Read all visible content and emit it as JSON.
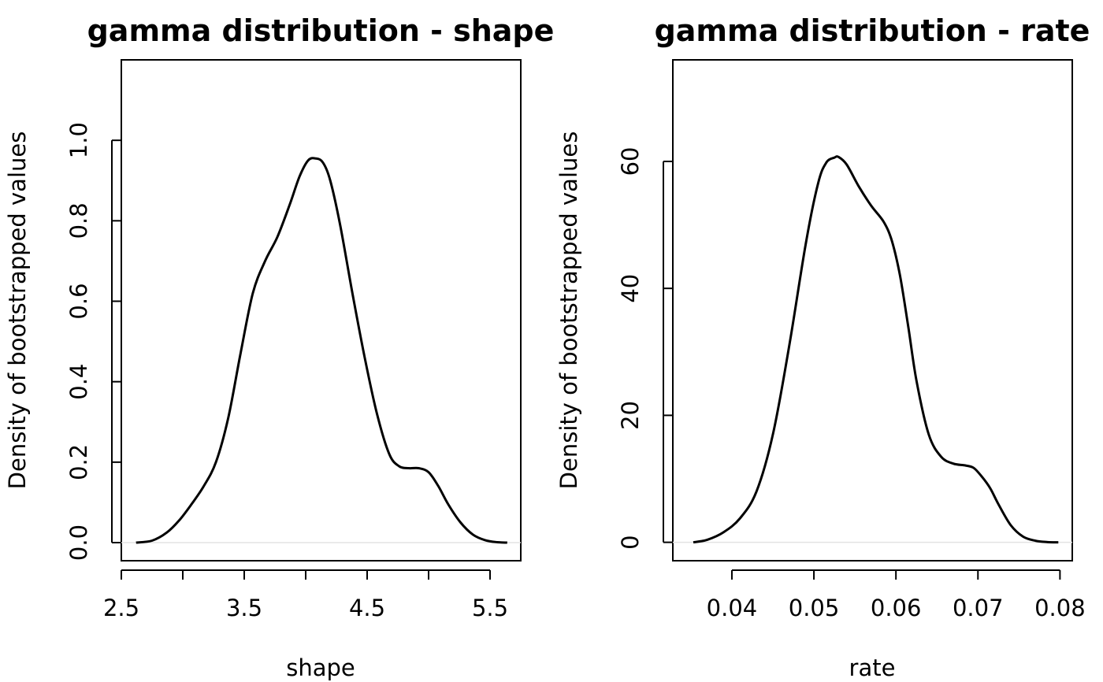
{
  "chart_data": [
    {
      "type": "line",
      "title": "gamma distribution - shape",
      "xlabel": "shape",
      "ylabel": "Density of bootstrapped values",
      "xlim": [
        2.5,
        5.75
      ],
      "ylim": [
        -0.045,
        1.2
      ],
      "x_ticks": [
        2.5,
        3.0,
        3.5,
        4.0,
        4.5,
        5.0,
        5.5
      ],
      "x_tick_labels": [
        "2.5",
        "",
        "3.5",
        "",
        "4.5",
        "",
        "5.5"
      ],
      "y_ticks": [
        0.0,
        0.2,
        0.4,
        0.6,
        0.8,
        1.0
      ],
      "y_tick_labels": [
        "0.0",
        "0.2",
        "0.4",
        "0.6",
        "0.8",
        "1.0"
      ],
      "zero_line": true,
      "series": [
        {
          "x": [
            2.62,
            2.75,
            2.87,
            2.97,
            3.07,
            3.17,
            3.27,
            3.37,
            3.47,
            3.57,
            3.67,
            3.77,
            3.87,
            3.95,
            4.02,
            4.08,
            4.14,
            4.2,
            4.28,
            4.38,
            4.48,
            4.58,
            4.68,
            4.76,
            4.84,
            4.92,
            5.0,
            5.08,
            5.16,
            5.26,
            5.36,
            5.46,
            5.56,
            5.64
          ],
          "y": [
            0.0,
            0.005,
            0.025,
            0.055,
            0.095,
            0.14,
            0.2,
            0.31,
            0.47,
            0.62,
            0.7,
            0.76,
            0.84,
            0.91,
            0.95,
            0.955,
            0.945,
            0.9,
            0.79,
            0.62,
            0.46,
            0.32,
            0.22,
            0.19,
            0.185,
            0.185,
            0.175,
            0.14,
            0.095,
            0.05,
            0.02,
            0.006,
            0.001,
            0.0
          ]
        }
      ]
    },
    {
      "type": "line",
      "title": "gamma distribution - rate",
      "xlabel": "rate",
      "ylabel": "Density of bootstrapped values",
      "xlim": [
        0.0328,
        0.0815
      ],
      "ylim": [
        -2.9,
        76
      ],
      "x_ticks": [
        0.04,
        0.05,
        0.06,
        0.07,
        0.08
      ],
      "x_tick_labels": [
        "0.04",
        "0.05",
        "0.06",
        "0.07",
        "0.08"
      ],
      "y_ticks": [
        0,
        20,
        40,
        60
      ],
      "y_tick_labels": [
        "0",
        "20",
        "40",
        "60"
      ],
      "zero_line": true,
      "series": [
        {
          "x": [
            0.0353,
            0.037,
            0.039,
            0.041,
            0.043,
            0.045,
            0.047,
            0.049,
            0.0505,
            0.0515,
            0.0525,
            0.053,
            0.054,
            0.0555,
            0.057,
            0.0585,
            0.0595,
            0.0605,
            0.0615,
            0.0625,
            0.064,
            0.0655,
            0.067,
            0.0685,
            0.0695,
            0.0705,
            0.0715,
            0.0725,
            0.074,
            0.0755,
            0.077,
            0.0785,
            0.0798
          ],
          "y": [
            0.0,
            0.4,
            1.6,
            3.8,
            8.0,
            17.0,
            31.0,
            47.0,
            56.5,
            59.8,
            60.6,
            60.7,
            59.5,
            56.0,
            53.0,
            50.5,
            47.5,
            42.0,
            34.0,
            25.5,
            17.0,
            13.5,
            12.4,
            12.1,
            11.7,
            10.3,
            8.5,
            6.0,
            2.7,
            0.9,
            0.25,
            0.03,
            0.0
          ]
        }
      ]
    }
  ]
}
